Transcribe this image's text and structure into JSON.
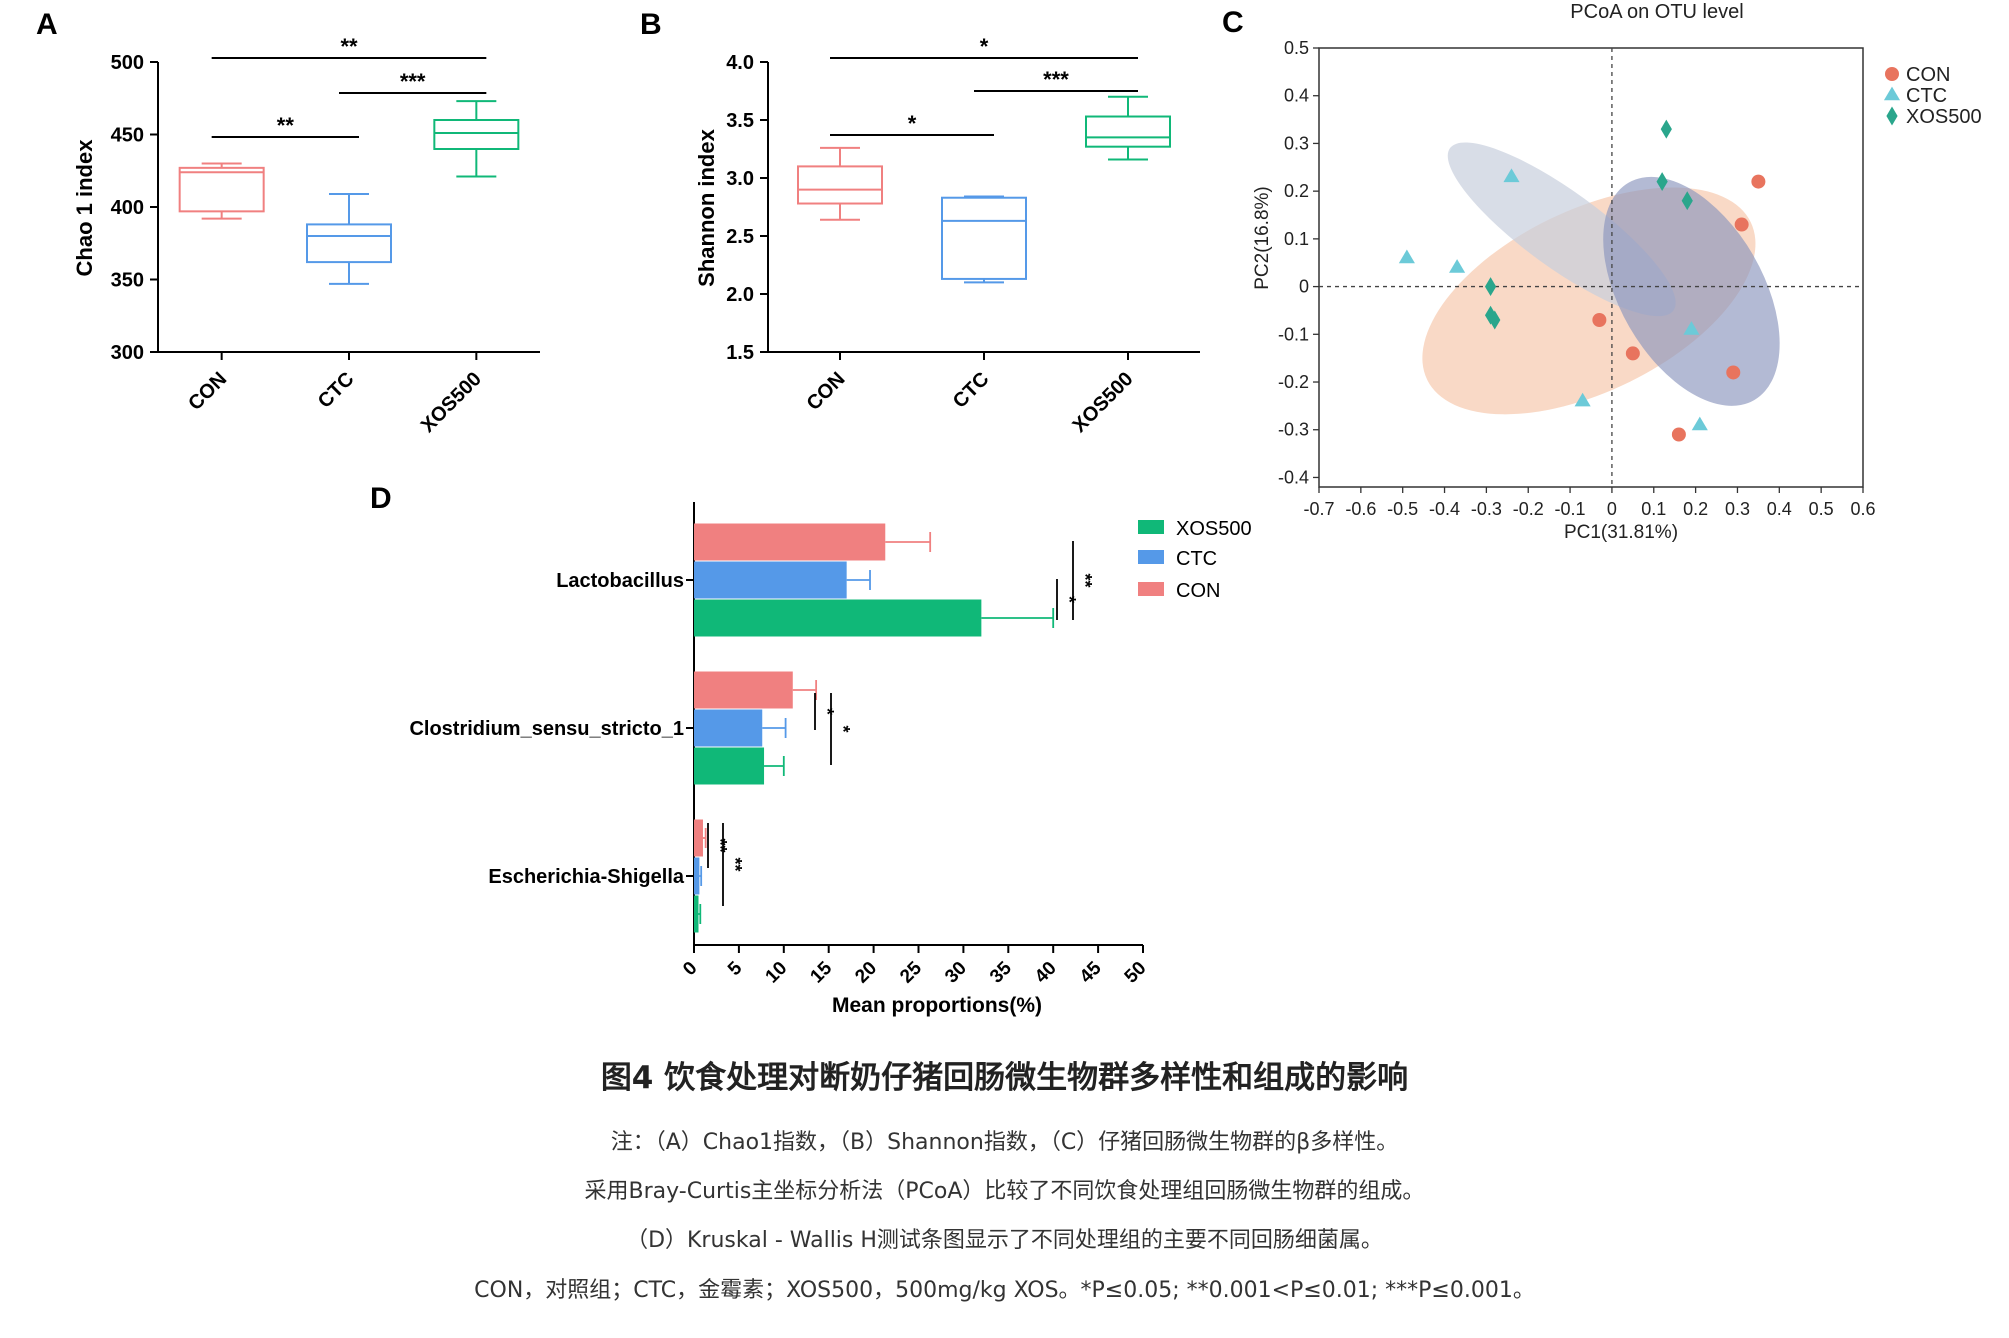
{
  "panels": {
    "a": "A",
    "b": "B",
    "c": "C",
    "d": "D"
  },
  "colors": {
    "CON": "#f08080",
    "CTC": "#5599e8",
    "XOS500": "#10b878",
    "con_point": "#e8745e",
    "ctc_point": "#6ccad8",
    "xos_point": "#2aa68c",
    "ellipse_con": "#f6c5a8",
    "ellipse_ctc": "#c8cedd",
    "ellipse_xos": "#8a95bd"
  },
  "chart_data": [
    {
      "id": "A",
      "type": "box",
      "ylabel": "Chao 1 index",
      "ylim": [
        300,
        500
      ],
      "yticks": [
        "300",
        "350",
        "400",
        "450",
        "500"
      ],
      "categories": [
        "CON",
        "CTC",
        "XOS500"
      ],
      "boxes": [
        {
          "name": "CON",
          "min": 392,
          "q1": 397,
          "median": 424,
          "q3": 427,
          "max": 430
        },
        {
          "name": "CTC",
          "min": 347,
          "q1": 362,
          "median": 380,
          "q3": 388,
          "max": 409
        },
        {
          "name": "XOS500",
          "min": 421,
          "q1": 440,
          "median": 451,
          "q3": 460,
          "max": 473
        }
      ],
      "brackets": [
        {
          "from": 0,
          "to": 2,
          "level": 1,
          "label": "**"
        },
        {
          "from": 1,
          "to": 2,
          "level": 2,
          "label": "***"
        },
        {
          "from": 0,
          "to": 1,
          "level": 3,
          "label": "**"
        }
      ]
    },
    {
      "id": "B",
      "type": "box",
      "ylabel": "Shannon index",
      "ylim": [
        1.5,
        4.0
      ],
      "yticks": [
        "1.5",
        "2.0",
        "2.5",
        "3.0",
        "3.5",
        "4.0"
      ],
      "categories": [
        "CON",
        "CTC",
        "XOS500"
      ],
      "boxes": [
        {
          "name": "CON",
          "min": 2.64,
          "q1": 2.78,
          "median": 2.9,
          "q3": 3.1,
          "max": 3.26
        },
        {
          "name": "CTC",
          "min": 2.1,
          "q1": 2.13,
          "median": 2.63,
          "q3": 2.83,
          "max": 2.84
        },
        {
          "name": "XOS500",
          "min": 3.16,
          "q1": 3.27,
          "median": 3.35,
          "q3": 3.53,
          "max": 3.7
        }
      ],
      "brackets": [
        {
          "from": 0,
          "to": 2,
          "level": 1,
          "label": "*"
        },
        {
          "from": 1,
          "to": 2,
          "level": 2,
          "label": "***"
        },
        {
          "from": 0,
          "to": 1,
          "level": 3,
          "label": "*"
        }
      ]
    },
    {
      "id": "C",
      "type": "scatter",
      "title": "PCoA on OTU level",
      "xlabel": "PC1(31.81%)",
      "ylabel": "PC2(16.8%)",
      "xlim": [
        -0.7,
        0.6
      ],
      "ylim": [
        -0.42,
        0.5
      ],
      "xticks": [
        "-0.7",
        "-0.6",
        "-0.5",
        "-0.4",
        "-0.3",
        "-0.2",
        "-0.1",
        "0",
        "0.1",
        "0.2",
        "0.3",
        "0.4",
        "0.5",
        "0.6"
      ],
      "yticks": [
        "-0.4",
        "-0.3",
        "-0.2",
        "-0.1",
        "0",
        "0.1",
        "0.2",
        "0.3",
        "0.4",
        "0.5"
      ],
      "legend": [
        "CON",
        "CTC",
        "XOS500"
      ],
      "legend_position": "right",
      "series": [
        {
          "name": "CON",
          "marker": "circle",
          "points": [
            [
              0.35,
              0.22
            ],
            [
              0.31,
              0.13
            ],
            [
              -0.03,
              -0.07
            ],
            [
              0.05,
              -0.14
            ],
            [
              0.29,
              -0.18
            ],
            [
              0.16,
              -0.31
            ]
          ]
        },
        {
          "name": "CTC",
          "marker": "triangle",
          "points": [
            [
              -0.24,
              0.23
            ],
            [
              -0.49,
              0.06
            ],
            [
              -0.37,
              0.04
            ],
            [
              0.19,
              -0.09
            ],
            [
              -0.07,
              -0.24
            ],
            [
              0.21,
              -0.29
            ]
          ]
        },
        {
          "name": "XOS500",
          "marker": "diamond",
          "points": [
            [
              0.13,
              0.33
            ],
            [
              0.12,
              0.22
            ],
            [
              0.18,
              0.18
            ],
            [
              -0.29,
              0.0
            ],
            [
              -0.29,
              -0.06
            ],
            [
              -0.28,
              -0.07
            ]
          ]
        }
      ],
      "ellipses": [
        {
          "name": "CON",
          "cx": -0.055,
          "cy": -0.03,
          "rx": 0.43,
          "ry": 0.19,
          "angle_deg": 26
        },
        {
          "name": "CTC",
          "cx": -0.12,
          "cy": 0.12,
          "rx": 0.33,
          "ry": 0.08,
          "angle_deg": -36
        },
        {
          "name": "XOS500",
          "cx": 0.19,
          "cy": -0.01,
          "rx": 0.3,
          "ry": 0.15,
          "angle_deg": -60
        }
      ]
    },
    {
      "id": "D",
      "type": "bar",
      "orientation": "horizontal",
      "xlabel": "Mean proportions(%)",
      "xlim": [
        0,
        50
      ],
      "xticks": [
        "0",
        "5",
        "10",
        "15",
        "20",
        "25",
        "30",
        "35",
        "40",
        "45",
        "50"
      ],
      "categories": [
        "Lactobacillus",
        "Clostridium_sensu_stricto_1",
        "Escherichia-Shigella"
      ],
      "legend": [
        "XOS500",
        "CTC",
        "CON"
      ],
      "legend_position": "top-right",
      "series": [
        {
          "name": "CON",
          "values": [
            21.3,
            11.0,
            1.0
          ],
          "errors": [
            5.0,
            2.6,
            0.3
          ]
        },
        {
          "name": "CTC",
          "values": [
            17.0,
            7.6,
            0.6
          ],
          "errors": [
            2.6,
            2.6,
            0.2
          ]
        },
        {
          "name": "XOS500",
          "values": [
            32.0,
            7.8,
            0.5
          ],
          "errors": [
            8.0,
            2.2,
            0.2
          ]
        }
      ],
      "significance": [
        {
          "category": 0,
          "labels": [
            "*",
            "**"
          ]
        },
        {
          "category": 1,
          "labels": [
            "*",
            "*"
          ]
        },
        {
          "category": 2,
          "labels": [
            "**",
            "**"
          ]
        }
      ]
    }
  ],
  "caption": {
    "title": "图4 饮食处理对断奶仔猪回肠微生物群多样性和组成的影响",
    "lines": [
      "注：（A）Chao1指数，（B）Shannon指数，（C）仔猪回肠微生物群的β多样性。",
      "采用Bray-Curtis主坐标分析法（PCoA）比较了不同饮食处理组回肠微生物群的组成。",
      "（D）Kruskal - Wallis H测试条图显示了不同处理组的主要不同回肠细菌属。",
      "CON，对照组；CTC，金霉素；XOS500，500mg/kg XOS。*P≤0.05; **0.001<P≤0.01; ***P≤0.001。"
    ]
  }
}
